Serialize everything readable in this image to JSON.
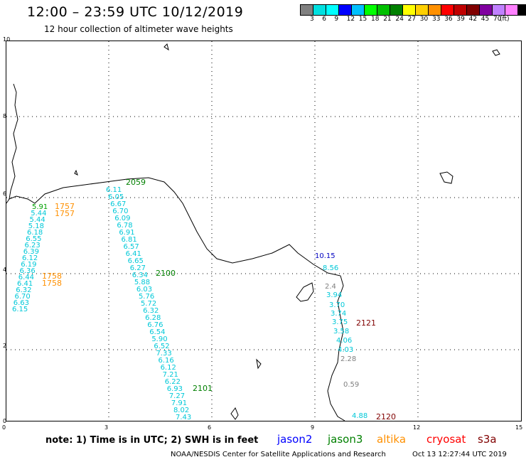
{
  "header": {
    "title": "12:00 – 23:59 UTC 10/12/2019",
    "subtitle": "12 hour collection of altimeter wave heights"
  },
  "legend": {
    "unit": "(ft)",
    "colors": [
      "#808080",
      "#00e0e0",
      "#00ffff",
      "#0000ff",
      "#00c0ff",
      "#00ff00",
      "#00c000",
      "#008000",
      "#ffff00",
      "#ffd000",
      "#ff9000",
      "#ff0000",
      "#c00000",
      "#800000",
      "#8000a0",
      "#c080ff",
      "#ff80ff",
      "#000000"
    ],
    "labels": [
      "3",
      "6",
      "9",
      "12",
      "15",
      "18",
      "21",
      "24",
      "27",
      "30",
      "33",
      "36",
      "39",
      "42",
      "45",
      "70"
    ]
  },
  "axes": {
    "x_ticks": [
      "0",
      "3",
      "6",
      "9",
      "12",
      "15"
    ],
    "y_ticks": [
      "0",
      "2",
      "4",
      "6",
      "8",
      "10"
    ]
  },
  "tracks": {
    "cyan_left": [
      "5.91",
      "5.44",
      "5.44",
      "5.18",
      "6.18",
      "6.55",
      "6.23",
      "6.39",
      "6.12",
      "6.19",
      "6.36",
      "6.44",
      "6.41",
      "6.32",
      "6.70",
      "6.63",
      "6.15"
    ],
    "cyan_middle": [
      "6.11",
      "6.05",
      "6.67",
      "6.70",
      "6.09",
      "6.78",
      "6.91",
      "6.81",
      "6.57",
      "6.41",
      "6.65",
      "6.27",
      "6.34",
      "5.88",
      "6.03",
      "5.76",
      "5.72",
      "6.32",
      "6.28",
      "6.76",
      "6.54",
      "5.90",
      "6.52",
      "7.33",
      "6.16",
      "6.12",
      "7.21",
      "6.22",
      "6.93",
      "7.27",
      "7.91",
      "8.02",
      "7.43"
    ],
    "right_values": [
      "10.15",
      "8.56",
      "2.4",
      "3.94",
      "3.70",
      "3.74",
      "3.75",
      "3.58",
      "4.06",
      "4.03",
      "2.28",
      "0.59",
      "4.88"
    ]
  },
  "time_labels": {
    "green_1": "2059",
    "green_2": "2100",
    "green_3": "2101",
    "orange_1": "1757",
    "orange_2": "1758",
    "darkred_1": "2121",
    "darkred_2": "2120"
  },
  "footer": {
    "note": "note:  1) Time is in UTC;  2) SWH is in feet",
    "satellites": [
      {
        "name": "jason2",
        "color": "#0000ff"
      },
      {
        "name": "jason3",
        "color": "#008000"
      },
      {
        "name": "altika",
        "color": "#ff9000"
      },
      {
        "name": "cryosat",
        "color": "#ff0000"
      },
      {
        "name": "s3a",
        "color": "#800000"
      }
    ],
    "credit": "NOAA/NESDIS Center for Satellite Applications and Research",
    "timestamp": "Oct 13 12:27:44 UTC 2019"
  }
}
